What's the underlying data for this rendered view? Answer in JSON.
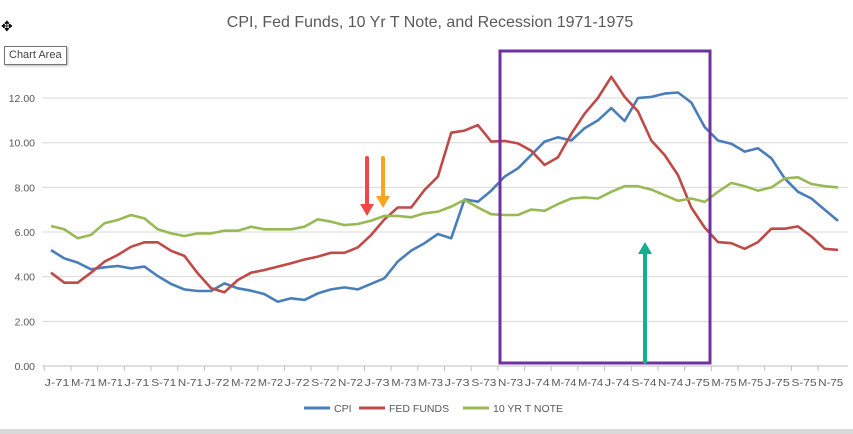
{
  "tooltip": {
    "label": "Chart Area"
  },
  "cursor_icon": "move-cursor-icon",
  "chart_data": {
    "type": "line",
    "title": "CPI, Fed Funds, 10 Yr T Note, and Recession 1971-1975",
    "xlabel": "",
    "ylabel": "",
    "ylim": [
      0,
      12.5
    ],
    "yticks": [
      "0.00",
      "2.00",
      "4.00",
      "6.00",
      "8.00",
      "10.00",
      "12.00"
    ],
    "grid": true,
    "legend": "bottom",
    "x_tick_labels": [
      "J-71",
      "M-71",
      "M-71",
      "J-71",
      "S-71",
      "N-71",
      "J-72",
      "M-72",
      "M-72",
      "J-72",
      "S-72",
      "N-72",
      "J-73",
      "M-73",
      "M-73",
      "J-73",
      "S-73",
      "N-73",
      "J-74",
      "M-74",
      "M-74",
      "J-74",
      "S-74",
      "N-74",
      "J-75",
      "M-75",
      "M-75",
      "J-75",
      "S-75",
      "N-75"
    ],
    "x_period": "monthly, Jan 1971 - Dec 1975",
    "series": [
      {
        "name": "CPI",
        "color": "#4a7ebb",
        "values": [
          5.19,
          4.82,
          4.63,
          4.33,
          4.42,
          4.48,
          4.37,
          4.45,
          4.03,
          3.67,
          3.43,
          3.36,
          3.36,
          3.7,
          3.48,
          3.37,
          3.22,
          2.88,
          3.03,
          2.96,
          3.25,
          3.43,
          3.52,
          3.43,
          3.68,
          3.93,
          4.68,
          5.17,
          5.5,
          5.91,
          5.72,
          7.46,
          7.36,
          7.85,
          8.48,
          8.85,
          9.45,
          10.05,
          10.24,
          10.1,
          10.65,
          11.0,
          11.55,
          10.97,
          12.0,
          12.05,
          12.2,
          12.25,
          11.8,
          10.7,
          10.1,
          9.95,
          9.6,
          9.75,
          9.3,
          8.4,
          7.8,
          7.5,
          7.0,
          6.5
        ]
      },
      {
        "name": "FED FUNDS",
        "color": "#be4b48",
        "values": [
          4.18,
          3.73,
          3.73,
          4.18,
          4.67,
          4.97,
          5.34,
          5.54,
          5.54,
          5.16,
          4.93,
          4.15,
          3.48,
          3.3,
          3.85,
          4.18,
          4.3,
          4.45,
          4.6,
          4.77,
          4.9,
          5.07,
          5.07,
          5.31,
          5.87,
          6.57,
          7.1,
          7.1,
          7.88,
          8.48,
          10.45,
          10.54,
          10.79,
          10.05,
          10.08,
          9.97,
          9.64,
          9.0,
          9.34,
          10.4,
          11.3,
          12.0,
          12.95,
          12.05,
          11.4,
          10.1,
          9.45,
          8.55,
          7.1,
          6.2,
          5.55,
          5.5,
          5.25,
          5.55,
          6.15,
          6.15,
          6.25,
          5.8,
          5.25,
          5.2
        ]
      },
      {
        "name": "10 YR T NOTE",
        "color": "#98b954",
        "values": [
          6.27,
          6.12,
          5.72,
          5.87,
          6.39,
          6.54,
          6.76,
          6.61,
          6.12,
          5.94,
          5.82,
          5.94,
          5.94,
          6.06,
          6.06,
          6.24,
          6.12,
          6.12,
          6.12,
          6.24,
          6.57,
          6.46,
          6.31,
          6.36,
          6.51,
          6.72,
          6.72,
          6.66,
          6.84,
          6.91,
          7.14,
          7.44,
          7.1,
          6.8,
          6.76,
          6.76,
          7.01,
          6.95,
          7.25,
          7.5,
          7.55,
          7.5,
          7.8,
          8.05,
          8.05,
          7.9,
          7.65,
          7.4,
          7.5,
          7.35,
          7.8,
          8.2,
          8.05,
          7.85,
          8.0,
          8.4,
          8.45,
          8.15,
          8.05,
          8.0
        ]
      }
    ],
    "annotations": [
      {
        "type": "rectangle",
        "meaning": "recession",
        "color": "#7030a0",
        "from_month": "Nov 1973",
        "to_month": "Mar 1975"
      },
      {
        "type": "arrow-down",
        "color": "#ff4040",
        "at_month": "Feb 1973"
      },
      {
        "type": "arrow-down",
        "color": "#ffa500",
        "at_month": "Mar 1973"
      },
      {
        "type": "arrow-up",
        "color": "#00b08c",
        "at_month": "Oct 1974"
      }
    ]
  }
}
